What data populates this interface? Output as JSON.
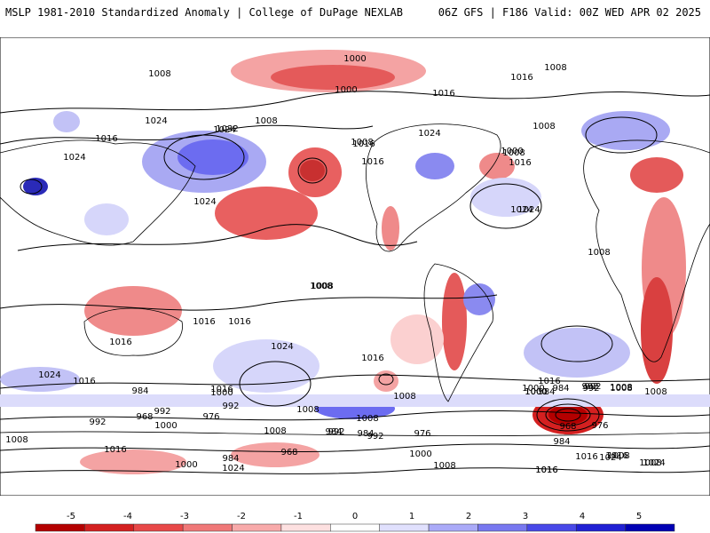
{
  "header": {
    "title": "MSLP 1981-2010 Standardized Anomaly | College of DuPage NEXLAB",
    "run": "06Z GFS | F186 Valid: 00Z WED APR 02 2025"
  },
  "isobar_labels": [
    "1000",
    "1000",
    "1008",
    "1008",
    "1008",
    "1016",
    "1016",
    "1016",
    "1024",
    "1024",
    "1024",
    "1032",
    "1016",
    "1008",
    "1024",
    "1016",
    "1008",
    "1008",
    "1024",
    "1024",
    "1000",
    "1016",
    "1008",
    "1024",
    "1016",
    "1008",
    "1008",
    "1016",
    "1016",
    "1016",
    "1024",
    "1024",
    "1016",
    "1016",
    "1008",
    "1000",
    "992",
    "984",
    "992",
    "1008",
    "1008",
    "976",
    "968",
    "1000",
    "992",
    "984",
    "1000",
    "1008",
    "1016",
    "1024",
    "1008",
    "992",
    "984",
    "976",
    "968",
    "984",
    "992",
    "1000",
    "1008",
    "1016",
    "1024",
    "1016",
    "984",
    "1016",
    "1000",
    "992",
    "984",
    "976",
    "1008",
    "1008",
    "1000",
    "992",
    "984",
    "968",
    "992",
    "1000",
    "1008",
    "1016",
    "1016",
    "1008",
    "1024",
    "1008",
    "1016"
  ],
  "colorbar": {
    "ticks": [
      "-5",
      "-4",
      "-3",
      "-2",
      "-1",
      "0",
      "1",
      "2",
      "3",
      "4",
      "5"
    ],
    "colors": [
      "#b40000",
      "#d42020",
      "#e84848",
      "#f07878",
      "#f8aaaa",
      "#fde0e0",
      "#ffffff",
      "#e0e0fd",
      "#aaaaf8",
      "#7878f0",
      "#4848e8",
      "#2020d4",
      "#0000b4"
    ]
  }
}
